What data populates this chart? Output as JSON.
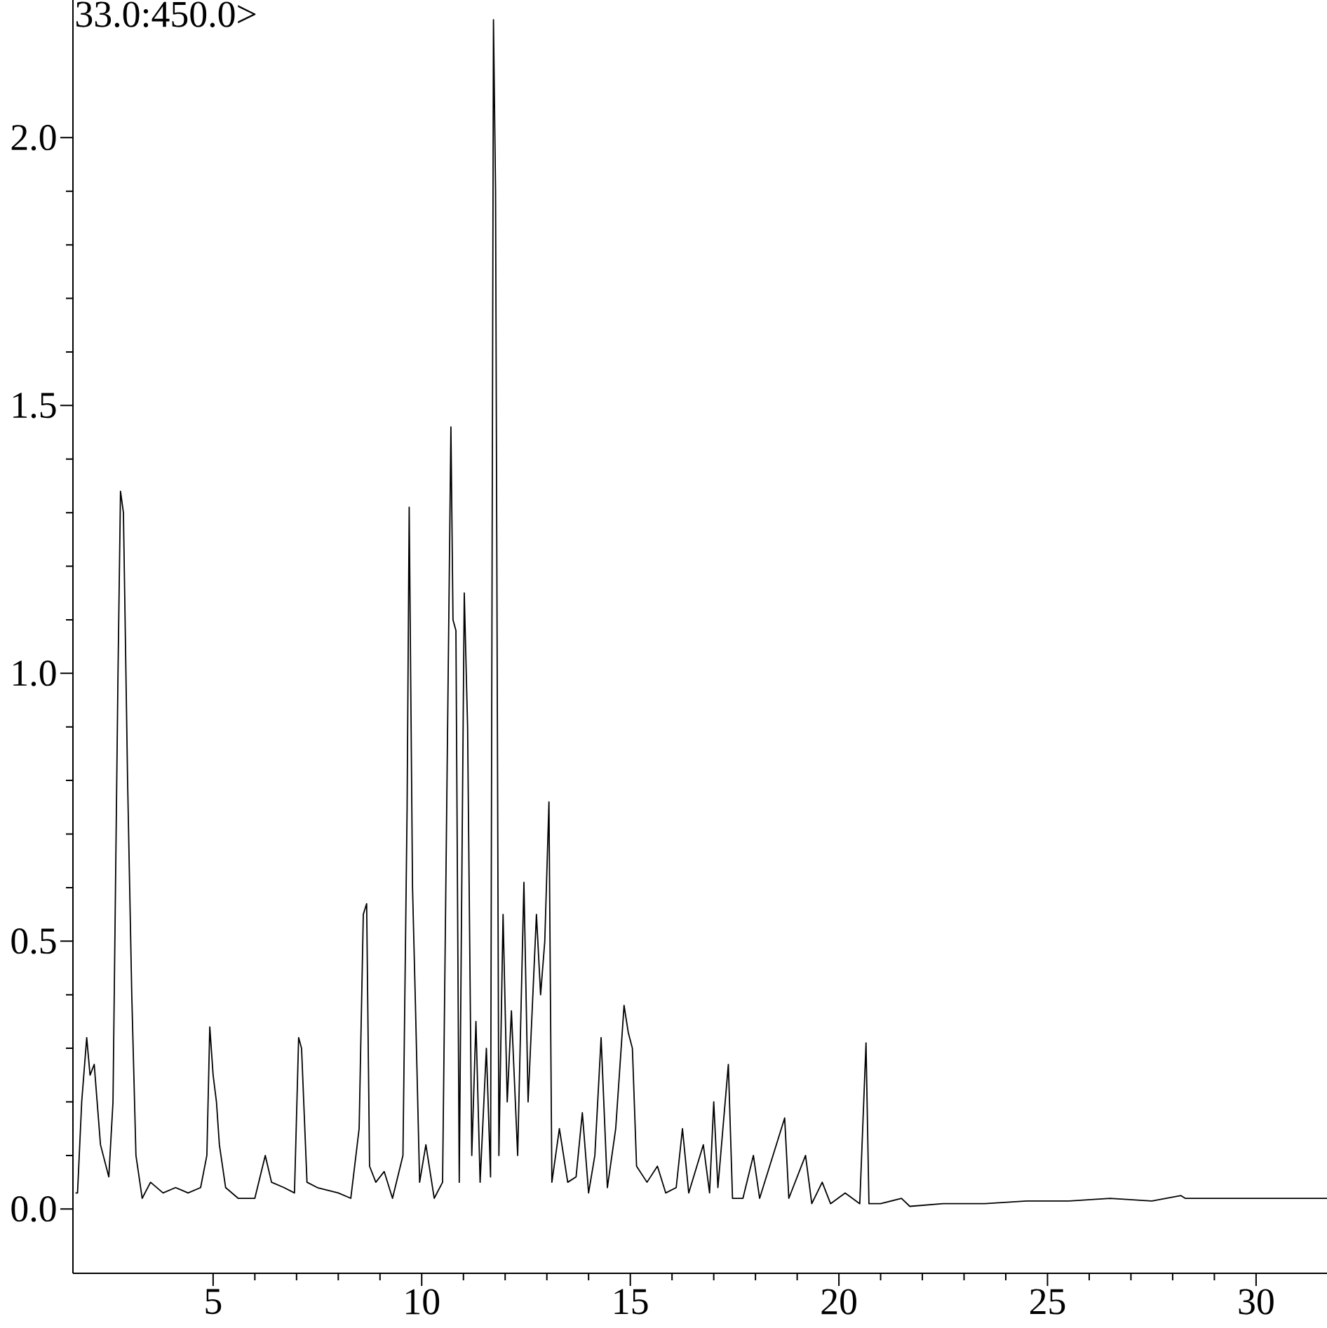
{
  "chart_data": {
    "type": "line",
    "annotations": [
      "33.0:450.0>"
    ],
    "xlim": [
      1.64,
      31.7
    ],
    "ylim": [
      -0.12,
      2.257
    ],
    "xticks": [
      5,
      10,
      15,
      20,
      25,
      30
    ],
    "yticks": [
      {
        "value": 0,
        "label": "0.0"
      },
      {
        "value": 0.5,
        "label": "0.5"
      },
      {
        "value": 1,
        "label": "1.0"
      },
      {
        "value": 1.5,
        "label": "1.5"
      },
      {
        "value": 2,
        "label": "2.0"
      }
    ],
    "series": [
      {
        "color": "#000000",
        "x": [
          1.7,
          1.75,
          1.85,
          1.97,
          2.05,
          2.15,
          2.3,
          2.5,
          2.6,
          2.72,
          2.78,
          2.85,
          2.95,
          3.05,
          3.15,
          3.3,
          3.5,
          3.8,
          4.1,
          4.4,
          4.7,
          4.85,
          4.92,
          5.0,
          5.08,
          5.15,
          5.3,
          5.6,
          6.0,
          6.25,
          6.4,
          6.7,
          6.95,
          7.05,
          7.12,
          7.25,
          7.5,
          8.0,
          8.3,
          8.5,
          8.6,
          8.68,
          8.75,
          8.9,
          9.1,
          9.3,
          9.55,
          9.65,
          9.7,
          9.78,
          9.85,
          9.95,
          10.1,
          10.3,
          10.5,
          10.7,
          10.75,
          10.82,
          10.9,
          11.02,
          11.1,
          11.2,
          11.3,
          11.4,
          11.55,
          11.65,
          11.72,
          11.77,
          11.85,
          11.95,
          12.05,
          12.15,
          12.3,
          12.45,
          12.55,
          12.75,
          12.85,
          12.95,
          13.05,
          13.12,
          13.3,
          13.5,
          13.7,
          13.85,
          14.0,
          14.15,
          14.3,
          14.45,
          14.65,
          14.85,
          14.95,
          15.05,
          15.15,
          15.4,
          15.65,
          15.85,
          16.1,
          16.25,
          16.4,
          16.75,
          16.9,
          17.0,
          17.1,
          17.35,
          17.45,
          17.7,
          17.95,
          18.1,
          18.7,
          18.8,
          19.2,
          19.35,
          19.6,
          19.8,
          20.15,
          20.5,
          20.65,
          20.72,
          21.0,
          21.5,
          21.7,
          22.5,
          23.5,
          24.5,
          25.5,
          26.5,
          27.5,
          28.2,
          28.3,
          30.0,
          31.7
        ],
        "values": [
          0.03,
          0.03,
          0.2,
          0.32,
          0.25,
          0.27,
          0.12,
          0.06,
          0.2,
          1.0,
          1.34,
          1.3,
          0.8,
          0.4,
          0.1,
          0.02,
          0.05,
          0.03,
          0.04,
          0.03,
          0.04,
          0.1,
          0.34,
          0.25,
          0.2,
          0.12,
          0.04,
          0.02,
          0.02,
          0.1,
          0.05,
          0.04,
          0.03,
          0.32,
          0.3,
          0.05,
          0.04,
          0.03,
          0.02,
          0.15,
          0.55,
          0.57,
          0.08,
          0.05,
          0.07,
          0.02,
          0.1,
          0.75,
          1.31,
          0.6,
          0.38,
          0.05,
          0.12,
          0.02,
          0.05,
          1.46,
          1.1,
          1.08,
          0.05,
          1.15,
          0.9,
          0.1,
          0.35,
          0.05,
          0.3,
          0.06,
          2.22,
          1.9,
          0.1,
          0.55,
          0.2,
          0.37,
          0.1,
          0.61,
          0.2,
          0.55,
          0.4,
          0.5,
          0.76,
          0.05,
          0.15,
          0.05,
          0.06,
          0.18,
          0.03,
          0.1,
          0.32,
          0.04,
          0.15,
          0.38,
          0.33,
          0.3,
          0.08,
          0.05,
          0.08,
          0.03,
          0.04,
          0.15,
          0.03,
          0.12,
          0.03,
          0.2,
          0.04,
          0.27,
          0.02,
          0.02,
          0.1,
          0.02,
          0.17,
          0.02,
          0.1,
          0.01,
          0.05,
          0.01,
          0.03,
          0.01,
          0.31,
          0.01,
          0.01,
          0.02,
          0.005,
          0.01,
          0.01,
          0.015,
          0.015,
          0.02,
          0.015,
          0.025,
          0.02,
          0.02,
          0.02
        ]
      }
    ]
  }
}
